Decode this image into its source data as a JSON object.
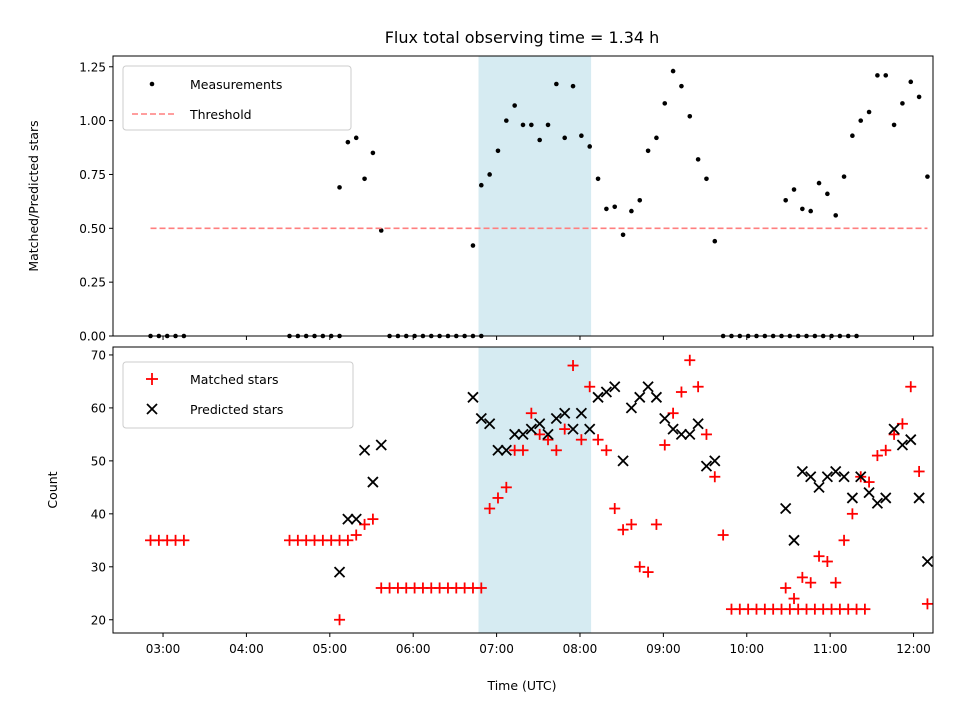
{
  "chart_data": [
    {
      "type": "scatter",
      "title": "Flux total observing time = 1.34 h",
      "xlabel": "",
      "ylabel": "Matched/Predicted stars",
      "xlim": [
        "02:24",
        "12:14"
      ],
      "ylim": [
        0,
        1.3
      ],
      "yticks": [
        0.0,
        0.25,
        0.5,
        0.75,
        1.0,
        1.25
      ],
      "ytick_labels": [
        "0.00",
        "0.25",
        "0.50",
        "0.75",
        "1.00",
        "1.25"
      ],
      "grid": false,
      "legend_position": "upper-left",
      "highlight_span": [
        "06:47",
        "08:08"
      ],
      "series": [
        {
          "name": "Measurements",
          "marker": "dot",
          "color": "#000000",
          "points": [
            [
              "02:51",
              0.0
            ],
            [
              "02:57",
              0.0
            ],
            [
              "03:03",
              0.0
            ],
            [
              "03:09",
              0.0
            ],
            [
              "03:15",
              0.0
            ],
            [
              "04:31",
              0.0
            ],
            [
              "04:37",
              0.0
            ],
            [
              "04:43",
              0.0
            ],
            [
              "04:49",
              0.0
            ],
            [
              "04:55",
              0.0
            ],
            [
              "05:01",
              0.0
            ],
            [
              "05:07",
              0.0
            ],
            [
              "05:07",
              0.69
            ],
            [
              "05:13",
              0.9
            ],
            [
              "05:19",
              0.92
            ],
            [
              "05:25",
              0.73
            ],
            [
              "05:31",
              0.85
            ],
            [
              "05:37",
              0.49
            ],
            [
              "05:43",
              0.0
            ],
            [
              "05:49",
              0.0
            ],
            [
              "05:55",
              0.0
            ],
            [
              "06:01",
              0.0
            ],
            [
              "06:07",
              0.0
            ],
            [
              "06:13",
              0.0
            ],
            [
              "06:19",
              0.0
            ],
            [
              "06:25",
              0.0
            ],
            [
              "06:31",
              0.0
            ],
            [
              "06:37",
              0.0
            ],
            [
              "06:43",
              0.0
            ],
            [
              "06:49",
              0.0
            ],
            [
              "06:43",
              0.42
            ],
            [
              "06:49",
              0.7
            ],
            [
              "06:55",
              0.75
            ],
            [
              "07:01",
              0.86
            ],
            [
              "07:07",
              1.0
            ],
            [
              "07:13",
              1.07
            ],
            [
              "07:19",
              0.98
            ],
            [
              "07:25",
              0.98
            ],
            [
              "07:31",
              0.91
            ],
            [
              "07:37",
              0.98
            ],
            [
              "07:43",
              1.17
            ],
            [
              "07:49",
              0.92
            ],
            [
              "07:55",
              1.16
            ],
            [
              "08:01",
              0.93
            ],
            [
              "08:07",
              0.88
            ],
            [
              "08:13",
              0.73
            ],
            [
              "08:19",
              0.59
            ],
            [
              "08:25",
              0.6
            ],
            [
              "08:31",
              0.47
            ],
            [
              "08:37",
              0.58
            ],
            [
              "08:43",
              0.63
            ],
            [
              "08:49",
              0.86
            ],
            [
              "08:55",
              0.92
            ],
            [
              "09:01",
              1.08
            ],
            [
              "09:07",
              1.23
            ],
            [
              "09:13",
              1.16
            ],
            [
              "09:19",
              1.02
            ],
            [
              "09:25",
              0.82
            ],
            [
              "09:31",
              0.73
            ],
            [
              "09:37",
              0.44
            ],
            [
              "09:43",
              0.0
            ],
            [
              "09:49",
              0.0
            ],
            [
              "09:55",
              0.0
            ],
            [
              "10:01",
              0.0
            ],
            [
              "10:07",
              0.0
            ],
            [
              "10:13",
              0.0
            ],
            [
              "10:19",
              0.0
            ],
            [
              "10:25",
              0.0
            ],
            [
              "10:31",
              0.0
            ],
            [
              "10:37",
              0.0
            ],
            [
              "10:43",
              0.0
            ],
            [
              "10:49",
              0.0
            ],
            [
              "10:55",
              0.0
            ],
            [
              "11:01",
              0.0
            ],
            [
              "11:07",
              0.0
            ],
            [
              "11:13",
              0.0
            ],
            [
              "11:19",
              0.0
            ],
            [
              "10:28",
              0.63
            ],
            [
              "10:34",
              0.68
            ],
            [
              "10:40",
              0.59
            ],
            [
              "10:46",
              0.58
            ],
            [
              "10:52",
              0.71
            ],
            [
              "10:58",
              0.66
            ],
            [
              "11:04",
              0.56
            ],
            [
              "11:10",
              0.74
            ],
            [
              "11:16",
              0.93
            ],
            [
              "11:22",
              1.0
            ],
            [
              "11:28",
              1.04
            ],
            [
              "11:34",
              1.21
            ],
            [
              "11:40",
              1.21
            ],
            [
              "11:46",
              0.98
            ],
            [
              "11:52",
              1.08
            ],
            [
              "11:58",
              1.18
            ],
            [
              "12:04",
              1.11
            ],
            [
              "12:10",
              0.74
            ]
          ]
        },
        {
          "name": "Threshold",
          "marker": "dashed-line",
          "color": "#ff7f7f",
          "points": [
            [
              "02:51",
              0.5
            ],
            [
              "12:10",
              0.5
            ]
          ]
        }
      ]
    },
    {
      "type": "scatter",
      "title": "",
      "xlabel": "Time (UTC)",
      "ylabel": "Count",
      "xlim": [
        "02:24",
        "12:14"
      ],
      "ylim": [
        17.5,
        71.5
      ],
      "yticks": [
        20,
        30,
        40,
        50,
        60,
        70
      ],
      "ytick_labels": [
        "20",
        "30",
        "40",
        "50",
        "60",
        "70"
      ],
      "xticks": [
        "03:00",
        "04:00",
        "05:00",
        "06:00",
        "07:00",
        "08:00",
        "09:00",
        "10:00",
        "11:00",
        "12:00"
      ],
      "grid": false,
      "legend_position": "upper-left",
      "highlight_span": [
        "06:47",
        "08:08"
      ],
      "series": [
        {
          "name": "Matched stars",
          "marker": "plus",
          "color": "#ff0000",
          "points": [
            [
              "02:51",
              35
            ],
            [
              "02:57",
              35
            ],
            [
              "03:03",
              35
            ],
            [
              "03:09",
              35
            ],
            [
              "03:15",
              35
            ],
            [
              "04:31",
              35
            ],
            [
              "04:37",
              35
            ],
            [
              "04:43",
              35
            ],
            [
              "04:49",
              35
            ],
            [
              "04:55",
              35
            ],
            [
              "05:01",
              35
            ],
            [
              "05:07",
              35
            ],
            [
              "05:07",
              20
            ],
            [
              "05:13",
              35
            ],
            [
              "05:19",
              36
            ],
            [
              "05:25",
              38
            ],
            [
              "05:31",
              39
            ],
            [
              "05:37",
              26
            ],
            [
              "05:43",
              26
            ],
            [
              "05:49",
              26
            ],
            [
              "05:55",
              26
            ],
            [
              "06:01",
              26
            ],
            [
              "06:07",
              26
            ],
            [
              "06:13",
              26
            ],
            [
              "06:19",
              26
            ],
            [
              "06:25",
              26
            ],
            [
              "06:31",
              26
            ],
            [
              "06:37",
              26
            ],
            [
              "06:43",
              26
            ],
            [
              "06:49",
              26
            ],
            [
              "06:55",
              41
            ],
            [
              "07:01",
              43
            ],
            [
              "07:07",
              45
            ],
            [
              "07:13",
              52
            ],
            [
              "07:19",
              52
            ],
            [
              "07:25",
              59
            ],
            [
              "07:31",
              55
            ],
            [
              "07:37",
              54
            ],
            [
              "07:43",
              52
            ],
            [
              "07:49",
              56
            ],
            [
              "07:55",
              68
            ],
            [
              "08:01",
              54
            ],
            [
              "08:07",
              64
            ],
            [
              "08:13",
              54
            ],
            [
              "08:19",
              52
            ],
            [
              "08:25",
              41
            ],
            [
              "08:31",
              37
            ],
            [
              "08:37",
              38
            ],
            [
              "08:43",
              30
            ],
            [
              "08:49",
              29
            ],
            [
              "08:55",
              38
            ],
            [
              "09:01",
              53
            ],
            [
              "09:07",
              59
            ],
            [
              "09:13",
              63
            ],
            [
              "09:19",
              69
            ],
            [
              "09:25",
              64
            ],
            [
              "09:31",
              55
            ],
            [
              "09:37",
              47
            ],
            [
              "09:43",
              36
            ],
            [
              "09:49",
              22
            ],
            [
              "09:55",
              22
            ],
            [
              "10:01",
              22
            ],
            [
              "10:07",
              22
            ],
            [
              "10:13",
              22
            ],
            [
              "10:19",
              22
            ],
            [
              "10:25",
              22
            ],
            [
              "10:31",
              22
            ],
            [
              "10:37",
              22
            ],
            [
              "10:43",
              22
            ],
            [
              "10:49",
              22
            ],
            [
              "10:55",
              22
            ],
            [
              "11:01",
              22
            ],
            [
              "11:07",
              22
            ],
            [
              "11:13",
              22
            ],
            [
              "11:19",
              22
            ],
            [
              "11:25",
              22
            ],
            [
              "10:28",
              26
            ],
            [
              "10:34",
              24
            ],
            [
              "10:40",
              28
            ],
            [
              "10:46",
              27
            ],
            [
              "10:52",
              32
            ],
            [
              "10:58",
              31
            ],
            [
              "11:04",
              27
            ],
            [
              "11:10",
              35
            ],
            [
              "11:16",
              40
            ],
            [
              "11:22",
              47
            ],
            [
              "11:28",
              46
            ],
            [
              "11:34",
              51
            ],
            [
              "11:40",
              52
            ],
            [
              "11:46",
              55
            ],
            [
              "11:52",
              57
            ],
            [
              "11:58",
              64
            ],
            [
              "12:04",
              48
            ],
            [
              "12:10",
              23
            ]
          ]
        },
        {
          "name": "Predicted stars",
          "marker": "cross",
          "color": "#000000",
          "points": [
            [
              "05:07",
              29
            ],
            [
              "05:13",
              39
            ],
            [
              "05:19",
              39
            ],
            [
              "05:25",
              52
            ],
            [
              "05:31",
              46
            ],
            [
              "05:37",
              53
            ],
            [
              "06:43",
              62
            ],
            [
              "06:49",
              58
            ],
            [
              "06:55",
              57
            ],
            [
              "07:01",
              52
            ],
            [
              "07:07",
              52
            ],
            [
              "07:13",
              55
            ],
            [
              "07:19",
              55
            ],
            [
              "07:25",
              56
            ],
            [
              "07:31",
              57
            ],
            [
              "07:37",
              55
            ],
            [
              "07:43",
              58
            ],
            [
              "07:49",
              59
            ],
            [
              "07:55",
              56
            ],
            [
              "08:01",
              59
            ],
            [
              "08:07",
              56
            ],
            [
              "08:13",
              62
            ],
            [
              "08:19",
              63
            ],
            [
              "08:25",
              64
            ],
            [
              "08:31",
              50
            ],
            [
              "08:37",
              60
            ],
            [
              "08:43",
              62
            ],
            [
              "08:49",
              64
            ],
            [
              "08:55",
              62
            ],
            [
              "09:01",
              58
            ],
            [
              "09:07",
              56
            ],
            [
              "09:13",
              55
            ],
            [
              "09:19",
              55
            ],
            [
              "09:25",
              57
            ],
            [
              "09:31",
              49
            ],
            [
              "09:37",
              50
            ],
            [
              "10:28",
              41
            ],
            [
              "10:34",
              35
            ],
            [
              "10:40",
              48
            ],
            [
              "10:46",
              47
            ],
            [
              "10:52",
              45
            ],
            [
              "10:58",
              47
            ],
            [
              "11:04",
              48
            ],
            [
              "11:10",
              47
            ],
            [
              "11:16",
              43
            ],
            [
              "11:22",
              47
            ],
            [
              "11:28",
              44
            ],
            [
              "11:34",
              42
            ],
            [
              "11:40",
              43
            ],
            [
              "11:46",
              56
            ],
            [
              "11:52",
              53
            ],
            [
              "11:58",
              54
            ],
            [
              "12:04",
              43
            ],
            [
              "12:10",
              31
            ]
          ]
        }
      ]
    }
  ]
}
